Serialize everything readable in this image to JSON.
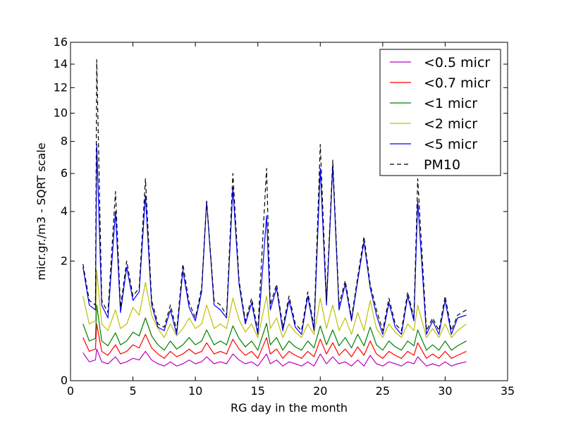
{
  "chart_data": {
    "type": "line",
    "title": "",
    "xlabel": "RG day in the month",
    "ylabel": "micr.gr./m3 - SQRT scale",
    "y_scale": "sqrt",
    "xlim": [
      0,
      35
    ],
    "ylim": [
      0,
      16
    ],
    "x_ticks": [
      0,
      5,
      10,
      15,
      20,
      25,
      30,
      35
    ],
    "y_ticks": [
      0,
      2,
      4,
      6,
      8,
      10,
      12,
      14,
      16
    ],
    "grid": false,
    "legend_position": "top-right",
    "x": [
      1.0,
      1.5,
      2.0,
      2.1,
      2.5,
      3.0,
      3.6,
      4.0,
      4.5,
      5.0,
      5.5,
      6.0,
      6.5,
      7.0,
      7.5,
      8.0,
      8.5,
      9.0,
      9.5,
      10.0,
      10.5,
      10.9,
      11.5,
      12.0,
      12.5,
      13.0,
      13.5,
      14.0,
      14.5,
      15.0,
      15.7,
      16.0,
      16.5,
      17.0,
      17.5,
      18.0,
      18.5,
      19.0,
      19.5,
      20.0,
      20.5,
      21.0,
      21.5,
      22.0,
      22.5,
      23.0,
      23.5,
      24.0,
      24.5,
      25.0,
      25.5,
      26.0,
      26.5,
      27.0,
      27.5,
      27.8,
      28.5,
      29.0,
      29.5,
      30.0,
      30.5,
      31.0,
      31.7
    ],
    "series": [
      {
        "name": "<0.5 micr",
        "color": "#bf00bf",
        "dash": "solid",
        "values": [
          0.11,
          0.05,
          0.06,
          0.14,
          0.05,
          0.04,
          0.08,
          0.04,
          0.05,
          0.07,
          0.06,
          0.12,
          0.06,
          0.04,
          0.03,
          0.05,
          0.03,
          0.04,
          0.06,
          0.04,
          0.05,
          0.08,
          0.04,
          0.05,
          0.04,
          0.1,
          0.06,
          0.04,
          0.05,
          0.03,
          0.1,
          0.04,
          0.06,
          0.03,
          0.05,
          0.04,
          0.03,
          0.05,
          0.03,
          0.1,
          0.04,
          0.08,
          0.04,
          0.05,
          0.03,
          0.06,
          0.03,
          0.09,
          0.04,
          0.03,
          0.05,
          0.04,
          0.03,
          0.05,
          0.04,
          0.08,
          0.03,
          0.04,
          0.03,
          0.05,
          0.03,
          0.04,
          0.05
        ]
      },
      {
        "name": "<0.7 micr",
        "color": "#ff0000",
        "dash": "solid",
        "values": [
          0.26,
          0.12,
          0.14,
          0.45,
          0.12,
          0.09,
          0.18,
          0.1,
          0.12,
          0.18,
          0.15,
          0.3,
          0.15,
          0.1,
          0.07,
          0.12,
          0.08,
          0.1,
          0.14,
          0.1,
          0.12,
          0.2,
          0.1,
          0.12,
          0.1,
          0.24,
          0.14,
          0.09,
          0.12,
          0.07,
          0.26,
          0.1,
          0.14,
          0.07,
          0.12,
          0.09,
          0.07,
          0.12,
          0.08,
          0.24,
          0.1,
          0.2,
          0.09,
          0.14,
          0.08,
          0.16,
          0.09,
          0.22,
          0.1,
          0.07,
          0.12,
          0.09,
          0.07,
          0.12,
          0.09,
          0.2,
          0.07,
          0.1,
          0.07,
          0.12,
          0.07,
          0.09,
          0.12
        ]
      },
      {
        "name": "<1 micr",
        "color": "#008000",
        "dash": "solid",
        "values": [
          0.45,
          0.22,
          0.25,
          0.8,
          0.22,
          0.17,
          0.32,
          0.18,
          0.22,
          0.33,
          0.28,
          0.55,
          0.28,
          0.18,
          0.13,
          0.22,
          0.14,
          0.18,
          0.26,
          0.18,
          0.22,
          0.36,
          0.18,
          0.22,
          0.18,
          0.42,
          0.25,
          0.16,
          0.22,
          0.13,
          0.46,
          0.18,
          0.26,
          0.13,
          0.22,
          0.16,
          0.13,
          0.22,
          0.15,
          0.42,
          0.18,
          0.36,
          0.17,
          0.26,
          0.15,
          0.3,
          0.17,
          0.4,
          0.18,
          0.13,
          0.22,
          0.16,
          0.13,
          0.22,
          0.17,
          0.36,
          0.13,
          0.18,
          0.13,
          0.22,
          0.13,
          0.17,
          0.22
        ]
      },
      {
        "name": "<2 micr",
        "color": "#bfbf00",
        "dash": "solid",
        "values": [
          1.0,
          0.45,
          0.5,
          1.7,
          0.45,
          0.35,
          0.7,
          0.38,
          0.45,
          0.75,
          0.6,
          1.35,
          0.6,
          0.38,
          0.26,
          0.45,
          0.28,
          0.38,
          0.55,
          0.38,
          0.45,
          0.8,
          0.38,
          0.45,
          0.38,
          0.95,
          0.52,
          0.33,
          0.45,
          0.26,
          1.0,
          0.38,
          0.55,
          0.26,
          0.45,
          0.33,
          0.26,
          0.45,
          0.3,
          0.95,
          0.38,
          0.8,
          0.35,
          0.55,
          0.3,
          0.65,
          0.35,
          0.9,
          0.38,
          0.26,
          0.45,
          0.33,
          0.26,
          0.45,
          0.35,
          0.8,
          0.26,
          0.38,
          0.26,
          0.45,
          0.26,
          0.35,
          0.45
        ]
      },
      {
        "name": "<5 micr",
        "color": "#0000ff",
        "dash": "solid",
        "values": [
          1.8,
          0.8,
          0.7,
          7.8,
          0.8,
          0.55,
          4.0,
          0.65,
          1.8,
          0.9,
          1.1,
          4.8,
          0.8,
          0.4,
          0.35,
          0.7,
          0.3,
          1.7,
          0.75,
          0.5,
          1.1,
          4.5,
          0.8,
          0.7,
          0.55,
          5.2,
          1.3,
          0.45,
          0.85,
          0.3,
          3.8,
          0.7,
          1.2,
          0.35,
          0.9,
          0.4,
          0.3,
          1.0,
          0.35,
          6.3,
          0.8,
          6.5,
          0.7,
          1.3,
          0.5,
          1.4,
          2.7,
          1.2,
          0.6,
          0.3,
          0.85,
          0.4,
          0.3,
          1.0,
          0.5,
          4.5,
          0.3,
          0.5,
          0.3,
          0.9,
          0.3,
          0.55,
          0.6
        ]
      },
      {
        "name": "PM10",
        "color": "#000000",
        "dash": "dashed",
        "values": [
          1.9,
          0.9,
          0.8,
          14.4,
          0.9,
          0.65,
          5.0,
          0.75,
          2.0,
          1.0,
          1.2,
          5.7,
          0.9,
          0.45,
          0.4,
          0.8,
          0.35,
          1.9,
          0.85,
          0.55,
          1.2,
          4.5,
          0.9,
          0.8,
          0.6,
          6.0,
          1.4,
          0.5,
          0.95,
          0.35,
          6.3,
          0.8,
          1.3,
          0.4,
          1.0,
          0.45,
          0.35,
          1.1,
          0.4,
          7.8,
          0.9,
          6.8,
          0.8,
          1.4,
          0.55,
          1.5,
          2.9,
          1.3,
          0.7,
          0.35,
          0.95,
          0.45,
          0.35,
          1.1,
          0.55,
          5.7,
          0.35,
          0.55,
          0.35,
          1.0,
          0.35,
          0.6,
          0.7
        ]
      }
    ]
  }
}
